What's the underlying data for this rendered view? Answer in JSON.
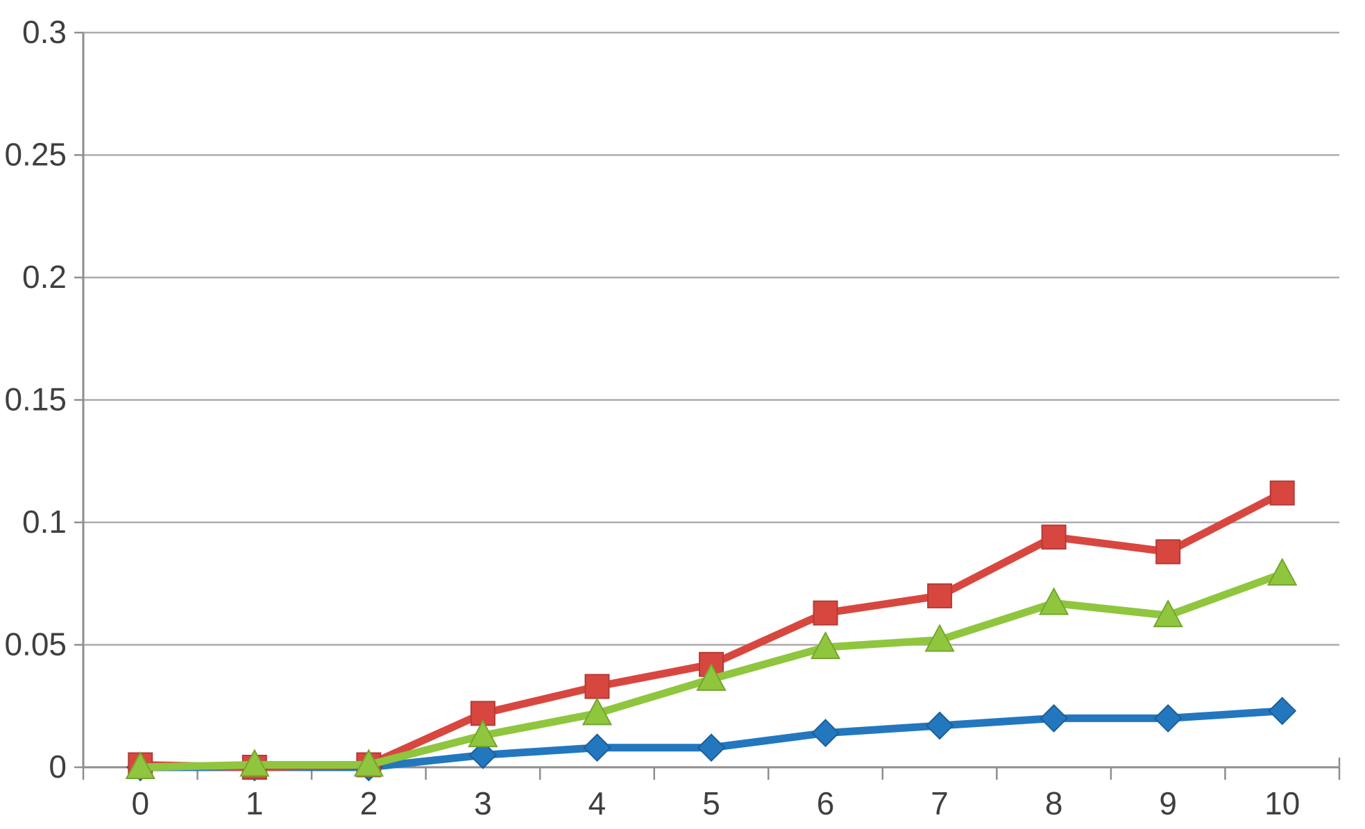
{
  "chart_data": {
    "type": "line",
    "title": "",
    "xlabel": "",
    "ylabel": "",
    "x": [
      0,
      1,
      2,
      3,
      4,
      5,
      6,
      7,
      8,
      9,
      10
    ],
    "x_tick_labels": [
      "0",
      "1",
      "2",
      "3",
      "4",
      "5",
      "6",
      "7",
      "8",
      "9",
      "10"
    ],
    "ylim": [
      0,
      0.3
    ],
    "ytick_interval": 0.05,
    "yticks": [
      0,
      0.05,
      0.1,
      0.15,
      0.2,
      0.25,
      0.3
    ],
    "ytick_labels": [
      "0",
      "0.05",
      "0.1",
      "0.15",
      "0.2",
      "0.25",
      "0.3"
    ],
    "grid": true,
    "legend_position": "none",
    "series": [
      {
        "name": "blue-diamond-series",
        "marker": "diamond",
        "color": "#2377BE",
        "edge_color": "#1A5F99",
        "values": [
          0.0,
          0.0,
          0.0,
          0.005,
          0.008,
          0.008,
          0.014,
          0.017,
          0.02,
          0.02,
          0.023
        ]
      },
      {
        "name": "red-square-series",
        "marker": "square",
        "color": "#D8473F",
        "edge_color": "#B23B35",
        "values": [
          0.001,
          0.0,
          0.001,
          0.022,
          0.033,
          0.042,
          0.063,
          0.07,
          0.094,
          0.088,
          0.112
        ]
      },
      {
        "name": "green-triangle-series",
        "marker": "triangle",
        "color": "#8FC63E",
        "edge_color": "#74A52F",
        "values": [
          0.0,
          0.001,
          0.001,
          0.013,
          0.022,
          0.036,
          0.049,
          0.052,
          0.067,
          0.062,
          0.079
        ]
      }
    ]
  },
  "style": {
    "background": "#FFFFFF",
    "grid_color": "#ACACAC",
    "axis_color": "#8E8E8E",
    "label_color": "#3F3F3F"
  }
}
